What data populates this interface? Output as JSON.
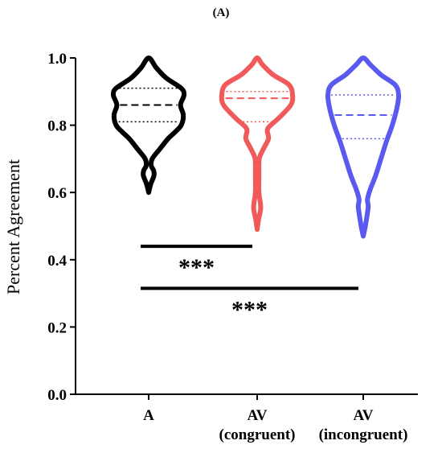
{
  "chart_data": {
    "type": "violin",
    "panel_label": "(A)",
    "ylabel": "Percent Agreement",
    "ylim": [
      0.0,
      1.0
    ],
    "yticks": [
      "0.0",
      "0.2",
      "0.4",
      "0.6",
      "0.8",
      "1.0"
    ],
    "categories": [
      {
        "lines": [
          "A"
        ]
      },
      {
        "lines": [
          "AV",
          "(congruent)"
        ]
      },
      {
        "lines": [
          "AV",
          "(incongruent)"
        ]
      }
    ],
    "series": [
      {
        "color": "#000000",
        "median": 0.86,
        "q1": 0.81,
        "q3": 0.91,
        "min": 0.6,
        "max": 1.0,
        "profile": [
          [
            0.6,
            0
          ],
          [
            0.625,
            0.06
          ],
          [
            0.65,
            0.15
          ],
          [
            0.665,
            0.14
          ],
          [
            0.68,
            0.07
          ],
          [
            0.7,
            0.1
          ],
          [
            0.73,
            0.32
          ],
          [
            0.76,
            0.55
          ],
          [
            0.78,
            0.75
          ],
          [
            0.8,
            0.92
          ],
          [
            0.83,
            0.98
          ],
          [
            0.86,
            0.9
          ],
          [
            0.89,
            1.0
          ],
          [
            0.91,
            0.92
          ],
          [
            0.94,
            0.5
          ],
          [
            0.97,
            0.22
          ],
          [
            1.0,
            0
          ]
        ]
      },
      {
        "color": "#f05a5a",
        "median": 0.88,
        "q1": 0.81,
        "q3": 0.9,
        "min": 0.49,
        "max": 1.0,
        "profile": [
          [
            0.49,
            0
          ],
          [
            0.52,
            0.04
          ],
          [
            0.555,
            0.1
          ],
          [
            0.6,
            0.05
          ],
          [
            0.65,
            0.05
          ],
          [
            0.7,
            0.06
          ],
          [
            0.73,
            0.18
          ],
          [
            0.76,
            0.32
          ],
          [
            0.79,
            0.3
          ],
          [
            0.82,
            0.6
          ],
          [
            0.86,
            0.95
          ],
          [
            0.89,
            1.0
          ],
          [
            0.92,
            0.9
          ],
          [
            0.95,
            0.45
          ],
          [
            0.98,
            0.15
          ],
          [
            1.0,
            0
          ]
        ]
      },
      {
        "color": "#5a5af0",
        "median": 0.83,
        "q1": 0.76,
        "q3": 0.89,
        "min": 0.47,
        "max": 1.0,
        "profile": [
          [
            0.47,
            0
          ],
          [
            0.5,
            0.06
          ],
          [
            0.54,
            0.12
          ],
          [
            0.56,
            0.14
          ],
          [
            0.58,
            0.12
          ],
          [
            0.61,
            0.2
          ],
          [
            0.65,
            0.35
          ],
          [
            0.7,
            0.5
          ],
          [
            0.75,
            0.65
          ],
          [
            0.8,
            0.82
          ],
          [
            0.85,
            0.95
          ],
          [
            0.89,
            1.0
          ],
          [
            0.92,
            0.9
          ],
          [
            0.95,
            0.5
          ],
          [
            0.98,
            0.2
          ],
          [
            1.0,
            0
          ]
        ]
      }
    ],
    "significance": [
      {
        "from": 0,
        "to": 1,
        "label": "***",
        "y": 0.44
      },
      {
        "from": 0,
        "to": 2,
        "label": "***",
        "y": 0.315
      }
    ]
  }
}
